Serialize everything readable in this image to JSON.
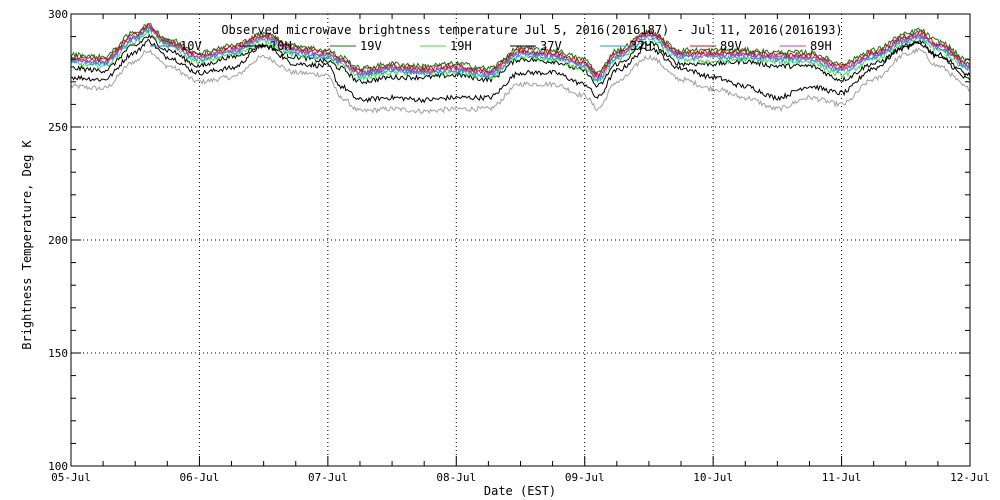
{
  "chart_data": {
    "type": "line",
    "title": "Observed microwave brightness temperature Jul  5, 2016(2016187) - Jul 11, 2016(2016193)",
    "xlabel": "Date (EST)",
    "ylabel": "Brightness Temperature, Deg K",
    "xlim": [
      "2016-07-05",
      "2016-07-12"
    ],
    "ylim": [
      100,
      300
    ],
    "x_ticks": [
      "05-Jul",
      "06-Jul",
      "07-Jul",
      "08-Jul",
      "09-Jul",
      "10-Jul",
      "11-Jul",
      "12-Jul"
    ],
    "y_ticks": [
      100,
      150,
      200,
      250,
      300
    ],
    "grid": true,
    "legend_placement": "top",
    "x_days": [
      0.0,
      0.25,
      0.5,
      0.6,
      0.75,
      1.0,
      1.25,
      1.5,
      1.75,
      2.0,
      2.1,
      2.25,
      2.5,
      2.75,
      3.0,
      3.25,
      3.5,
      3.75,
      4.0,
      4.1,
      4.25,
      4.5,
      4.75,
      5.0,
      5.25,
      5.5,
      5.75,
      6.0,
      6.25,
      6.5,
      6.6,
      6.75,
      7.0
    ],
    "series": [
      {
        "name": "10V",
        "color": "#1f6fd0",
        "values": [
          280,
          279,
          290,
          294,
          288,
          281,
          284,
          290,
          284,
          282,
          280,
          274,
          276,
          275,
          276,
          274,
          283,
          282,
          278,
          272,
          282,
          291,
          282,
          282,
          282,
          281,
          281,
          276,
          282,
          289,
          291,
          286,
          277
        ]
      },
      {
        "name": "10H",
        "color": "#000000",
        "values": [
          276,
          275,
          286,
          290,
          284,
          277,
          281,
          286,
          281,
          279,
          276,
          270,
          272,
          272,
          273,
          271,
          280,
          279,
          275,
          268,
          278,
          287,
          278,
          278,
          279,
          277,
          277,
          271,
          278,
          285,
          287,
          282,
          273
        ]
      },
      {
        "name": "19V",
        "color": "#0f7a0f",
        "values": [
          282,
          281,
          292,
          295,
          289,
          283,
          286,
          291,
          286,
          284,
          281,
          276,
          278,
          277,
          278,
          276,
          285,
          284,
          280,
          274,
          284,
          292,
          284,
          284,
          284,
          283,
          283,
          278,
          284,
          291,
          293,
          288,
          279
        ]
      },
      {
        "name": "19H",
        "color": "#44dd44",
        "values": [
          278,
          277,
          288,
          292,
          286,
          279,
          282,
          288,
          282,
          280,
          278,
          272,
          274,
          274,
          274,
          272,
          281,
          280,
          276,
          270,
          280,
          289,
          280,
          279,
          280,
          279,
          279,
          273,
          280,
          287,
          289,
          284,
          275
        ]
      },
      {
        "name": "37V",
        "color": "#000000",
        "values": [
          272,
          271,
          283,
          288,
          281,
          274,
          276,
          286,
          278,
          277,
          268,
          262,
          263,
          262,
          263,
          263,
          274,
          274,
          269,
          263,
          275,
          285,
          276,
          272,
          268,
          263,
          268,
          265,
          276,
          286,
          288,
          281,
          271
        ]
      },
      {
        "name": "37H",
        "color": "#1a9fd0",
        "values": [
          279,
          278,
          289,
          293,
          287,
          280,
          283,
          289,
          283,
          281,
          279,
          273,
          275,
          274,
          275,
          273,
          282,
          281,
          277,
          271,
          281,
          290,
          281,
          281,
          281,
          280,
          280,
          275,
          281,
          288,
          290,
          285,
          276
        ]
      },
      {
        "name": "89V",
        "color": "#d01010",
        "values": [
          281,
          280,
          291,
          295,
          288,
          282,
          285,
          291,
          285,
          283,
          280,
          275,
          277,
          276,
          277,
          275,
          284,
          283,
          279,
          273,
          283,
          292,
          283,
          283,
          283,
          282,
          282,
          277,
          283,
          290,
          292,
          287,
          278
        ]
      },
      {
        "name": "89H",
        "color": "#c040c0",
        "values": [
          280,
          279,
          290,
          294,
          287,
          281,
          284,
          290,
          284,
          282,
          279,
          274,
          276,
          275,
          276,
          274,
          283,
          282,
          278,
          272,
          282,
          291,
          282,
          282,
          282,
          281,
          281,
          276,
          282,
          289,
          291,
          286,
          277
        ]
      },
      {
        "name": "",
        "color": "#a0a0a0",
        "values": [
          268,
          267,
          279,
          284,
          277,
          270,
          272,
          281,
          274,
          273,
          263,
          257,
          258,
          257,
          258,
          258,
          269,
          269,
          264,
          258,
          270,
          281,
          271,
          267,
          263,
          258,
          263,
          260,
          271,
          282,
          284,
          277,
          267
        ]
      }
    ]
  }
}
